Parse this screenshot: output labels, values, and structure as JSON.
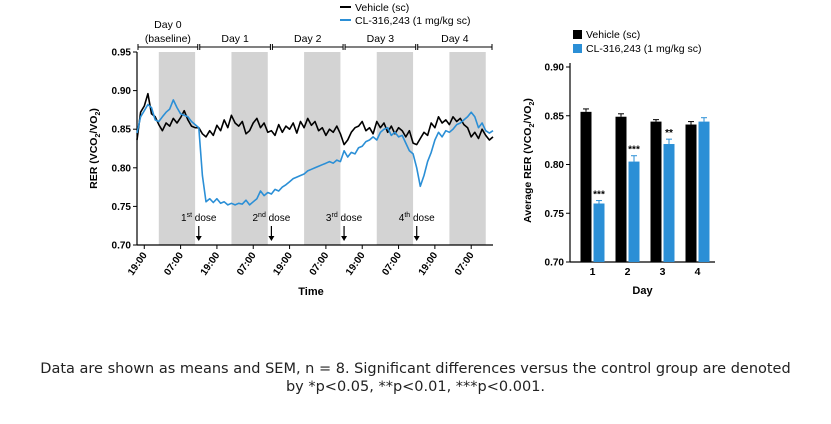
{
  "colors": {
    "vehicle": "#000000",
    "cl": "#2b8fd6",
    "night": "#d3d3d3",
    "axis": "#000000"
  },
  "chart_data": [
    {
      "type": "line",
      "ylabel": "RER (VCO2/VO2)",
      "ylabel_parts": {
        "main": "RER (VCO",
        "sub1": "2",
        "mid": "/VO",
        "sub2": "2",
        "end": ")"
      },
      "xlabel": "Time",
      "ylim": [
        0.7,
        0.95
      ],
      "yticks": [
        "0.70",
        "0.75",
        "0.80",
        "0.85",
        "0.90",
        "0.95"
      ],
      "xticks": [
        "19:00",
        "07:00",
        "19:00",
        "07:00",
        "19:00",
        "07:00",
        "19:00",
        "07:00",
        "19:00",
        "07:00"
      ],
      "xlim": [
        0,
        98
      ],
      "day_labels": [
        {
          "line1": "Day 0",
          "line2": "(baseline)",
          "x0": 0,
          "x1": 17
        },
        {
          "line1": "Day 1",
          "line2": "",
          "x0": 17,
          "x1": 37
        },
        {
          "line1": "Day 2",
          "line2": "",
          "x0": 37,
          "x1": 57
        },
        {
          "line1": "Day 3",
          "line2": "",
          "x0": 57,
          "x1": 77
        },
        {
          "line1": "Day 4",
          "line2": "",
          "x0": 77,
          "x1": 98
        }
      ],
      "dark_periods": [
        [
          6,
          16
        ],
        [
          26,
          36
        ],
        [
          46,
          56
        ],
        [
          66,
          76
        ],
        [
          86,
          96
        ]
      ],
      "doses": [
        {
          "ord": "1",
          "sup": "st",
          "word": " dose",
          "x": 17
        },
        {
          "ord": "2",
          "sup": "nd",
          "word": " dose",
          "x": 37
        },
        {
          "ord": "3",
          "sup": "rd",
          "word": " dose",
          "x": 57
        },
        {
          "ord": "4",
          "sup": "th",
          "word": " dose",
          "x": 77
        }
      ],
      "legend": {
        "vehicle": "Vehicle (sc)",
        "cl": "CL-316,243 (1 mg/kg sc)"
      },
      "series": [
        {
          "name": "Vehicle (sc)",
          "x": [
            0,
            1,
            2,
            3,
            4,
            5,
            6,
            7,
            8,
            9,
            10,
            11,
            12,
            13,
            14,
            15,
            16,
            17,
            18,
            19,
            20,
            21,
            22,
            23,
            24,
            25,
            26,
            27,
            28,
            29,
            30,
            31,
            32,
            33,
            34,
            35,
            36,
            37,
            38,
            39,
            40,
            41,
            42,
            43,
            44,
            45,
            46,
            47,
            48,
            49,
            50,
            51,
            52,
            53,
            54,
            55,
            56,
            57,
            58,
            59,
            60,
            61,
            62,
            63,
            64,
            65,
            66,
            67,
            68,
            69,
            70,
            71,
            72,
            73,
            74,
            75,
            76,
            77,
            78,
            79,
            80,
            81,
            82,
            83,
            84,
            85,
            86,
            87,
            88,
            89,
            90,
            91,
            92,
            93,
            94,
            95,
            96,
            97,
            98
          ],
          "values": [
            0.836,
            0.872,
            0.88,
            0.896,
            0.87,
            0.866,
            0.856,
            0.848,
            0.858,
            0.854,
            0.864,
            0.858,
            0.865,
            0.874,
            0.862,
            0.854,
            0.852,
            0.852,
            0.844,
            0.84,
            0.848,
            0.842,
            0.855,
            0.848,
            0.862,
            0.852,
            0.868,
            0.858,
            0.854,
            0.86,
            0.844,
            0.848,
            0.858,
            0.864,
            0.852,
            0.858,
            0.846,
            0.848,
            0.842,
            0.856,
            0.846,
            0.854,
            0.85,
            0.858,
            0.845,
            0.86,
            0.852,
            0.864,
            0.855,
            0.86,
            0.848,
            0.852,
            0.842,
            0.85,
            0.846,
            0.854,
            0.844,
            0.83,
            0.836,
            0.846,
            0.852,
            0.854,
            0.86,
            0.848,
            0.852,
            0.844,
            0.86,
            0.852,
            0.858,
            0.846,
            0.854,
            0.844,
            0.852,
            0.848,
            0.84,
            0.848,
            0.832,
            0.83,
            0.838,
            0.846,
            0.842,
            0.858,
            0.852,
            0.866,
            0.858,
            0.862,
            0.856,
            0.866,
            0.86,
            0.864,
            0.856,
            0.852,
            0.84,
            0.846,
            0.838,
            0.85,
            0.842,
            0.836,
            0.84
          ]
        },
        {
          "name": "CL-316,243 (1 mg/kg sc)",
          "x": [
            0,
            1,
            2,
            3,
            4,
            5,
            6,
            7,
            8,
            9,
            10,
            11,
            12,
            13,
            14,
            15,
            16,
            17,
            18,
            19,
            20,
            21,
            22,
            23,
            24,
            25,
            26,
            27,
            28,
            29,
            30,
            31,
            32,
            33,
            34,
            35,
            36,
            37,
            38,
            39,
            40,
            41,
            42,
            43,
            44,
            45,
            46,
            47,
            48,
            49,
            50,
            51,
            52,
            53,
            54,
            55,
            56,
            57,
            58,
            59,
            60,
            61,
            62,
            63,
            64,
            65,
            66,
            67,
            68,
            69,
            70,
            71,
            72,
            73,
            74,
            75,
            76,
            77,
            78,
            79,
            80,
            81,
            82,
            83,
            84,
            85,
            86,
            87,
            88,
            89,
            90,
            91,
            92,
            93,
            94,
            95,
            96,
            97,
            98
          ],
          "values": [
            0.845,
            0.866,
            0.874,
            0.882,
            0.878,
            0.862,
            0.86,
            0.866,
            0.872,
            0.876,
            0.888,
            0.878,
            0.87,
            0.868,
            0.866,
            0.86,
            0.856,
            0.852,
            0.79,
            0.756,
            0.76,
            0.755,
            0.76,
            0.754,
            0.756,
            0.752,
            0.754,
            0.752,
            0.754,
            0.753,
            0.758,
            0.752,
            0.756,
            0.76,
            0.77,
            0.764,
            0.768,
            0.766,
            0.772,
            0.77,
            0.775,
            0.778,
            0.782,
            0.786,
            0.788,
            0.79,
            0.792,
            0.796,
            0.798,
            0.8,
            0.802,
            0.804,
            0.806,
            0.808,
            0.806,
            0.81,
            0.808,
            0.822,
            0.814,
            0.82,
            0.818,
            0.826,
            0.828,
            0.834,
            0.836,
            0.84,
            0.836,
            0.846,
            0.85,
            0.852,
            0.842,
            0.846,
            0.84,
            0.842,
            0.832,
            0.822,
            0.818,
            0.8,
            0.776,
            0.79,
            0.808,
            0.82,
            0.836,
            0.846,
            0.84,
            0.848,
            0.846,
            0.85,
            0.856,
            0.858,
            0.862,
            0.866,
            0.872,
            0.866,
            0.852,
            0.858,
            0.848,
            0.845,
            0.848
          ]
        }
      ]
    },
    {
      "type": "bar",
      "ylabel": "Average RER (VCO2/VO2)",
      "ylabel_parts": {
        "main": "Average RER (VCO",
        "sub1": "2",
        "mid": "/VO",
        "sub2": "2",
        "end": ")"
      },
      "xlabel": "Day",
      "categories": [
        "1",
        "2",
        "3",
        "4"
      ],
      "ylim": [
        0.7,
        0.9
      ],
      "yticks": [
        "0.70",
        "0.75",
        "0.80",
        "0.85",
        "0.90"
      ],
      "legend": {
        "vehicle": "Vehicle (sc)",
        "cl": "CL-316,243 (1 mg/kg sc)"
      },
      "series": [
        {
          "name": "Vehicle (sc)",
          "values": [
            0.854,
            0.849,
            0.844,
            0.841
          ],
          "sem": [
            0.003,
            0.003,
            0.002,
            0.003
          ]
        },
        {
          "name": "CL-316,243 (1 mg/kg sc)",
          "values": [
            0.76,
            0.803,
            0.821,
            0.844
          ],
          "sem": [
            0.003,
            0.006,
            0.005,
            0.004
          ]
        }
      ],
      "significance": [
        "***",
        "***",
        "**",
        ""
      ]
    }
  ],
  "caption": {
    "line1": "Data are shown as means and SEM, n = 8. Significant differences versus the control group are denoted",
    "line2": "by *p<0.05, **p<0.01, ***p<0.001."
  }
}
